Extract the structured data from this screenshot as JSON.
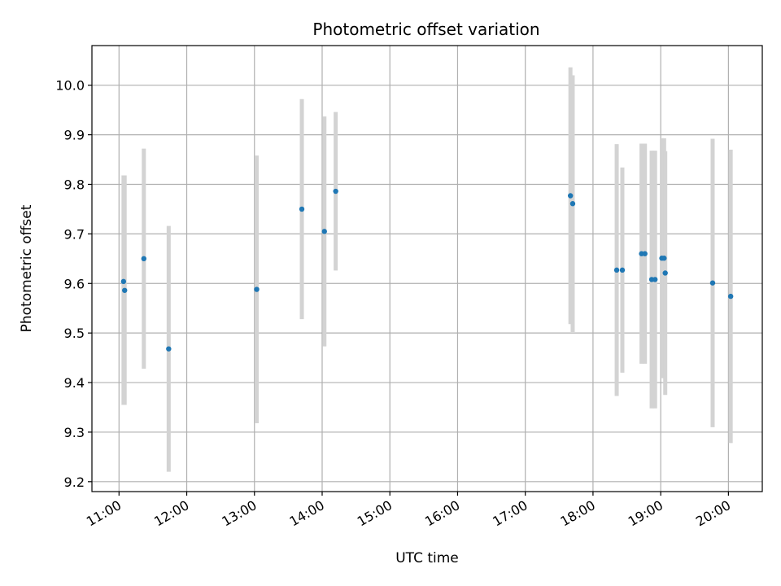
{
  "chart_data": {
    "type": "scatter",
    "title": "Photometric offset variation",
    "xlabel": "UTC time",
    "ylabel": "Photometric offset",
    "grid": true,
    "legend": "none",
    "xlim": [
      "10:36",
      "20:30"
    ],
    "ylim": [
      9.18,
      10.08
    ],
    "x_ticks": [
      "11:00",
      "12:00",
      "13:00",
      "14:00",
      "15:00",
      "16:00",
      "17:00",
      "18:00",
      "19:00",
      "20:00"
    ],
    "y_ticks": [
      "9.2",
      "9.3",
      "9.4",
      "9.5",
      "9.6",
      "9.7",
      "9.8",
      "9.9",
      "10.0"
    ],
    "colors": {
      "marker": "#1f77b4",
      "errorbar": "#d3d3d3",
      "grid": "#b0b0b0"
    },
    "points": [
      {
        "time": "11:04",
        "y": 9.604,
        "lo": 9.355,
        "hi": 9.818
      },
      {
        "time": "11:05",
        "y": 9.586,
        "lo": 9.355,
        "hi": 9.818
      },
      {
        "time": "11:22",
        "y": 9.65,
        "lo": 9.428,
        "hi": 9.872
      },
      {
        "time": "11:44",
        "y": 9.468,
        "lo": 9.22,
        "hi": 9.716
      },
      {
        "time": "13:02",
        "y": 9.588,
        "lo": 9.318,
        "hi": 9.858
      },
      {
        "time": "13:42",
        "y": 9.75,
        "lo": 9.528,
        "hi": 9.972
      },
      {
        "time": "14:02",
        "y": 9.705,
        "lo": 9.473,
        "hi": 9.937
      },
      {
        "time": "14:12",
        "y": 9.786,
        "lo": 9.626,
        "hi": 9.946
      },
      {
        "time": "17:40",
        "y": 9.777,
        "lo": 9.518,
        "hi": 10.036
      },
      {
        "time": "17:42",
        "y": 9.761,
        "lo": 9.502,
        "hi": 10.02
      },
      {
        "time": "18:21",
        "y": 9.627,
        "lo": 9.373,
        "hi": 9.881
      },
      {
        "time": "18:26",
        "y": 9.627,
        "lo": 9.42,
        "hi": 9.834
      },
      {
        "time": "18:43",
        "y": 9.66,
        "lo": 9.438,
        "hi": 9.882
      },
      {
        "time": "18:46",
        "y": 9.66,
        "lo": 9.438,
        "hi": 9.882
      },
      {
        "time": "18:52",
        "y": 9.608,
        "lo": 9.348,
        "hi": 9.868
      },
      {
        "time": "18:55",
        "y": 9.608,
        "lo": 9.348,
        "hi": 9.868
      },
      {
        "time": "19:01",
        "y": 9.651,
        "lo": 9.409,
        "hi": 9.893
      },
      {
        "time": "19:03",
        "y": 9.651,
        "lo": 9.409,
        "hi": 9.893
      },
      {
        "time": "19:04",
        "y": 9.621,
        "lo": 9.375,
        "hi": 9.867
      },
      {
        "time": "19:46",
        "y": 9.601,
        "lo": 9.31,
        "hi": 9.892
      },
      {
        "time": "20:02",
        "y": 9.574,
        "lo": 9.278,
        "hi": 9.87
      }
    ]
  }
}
